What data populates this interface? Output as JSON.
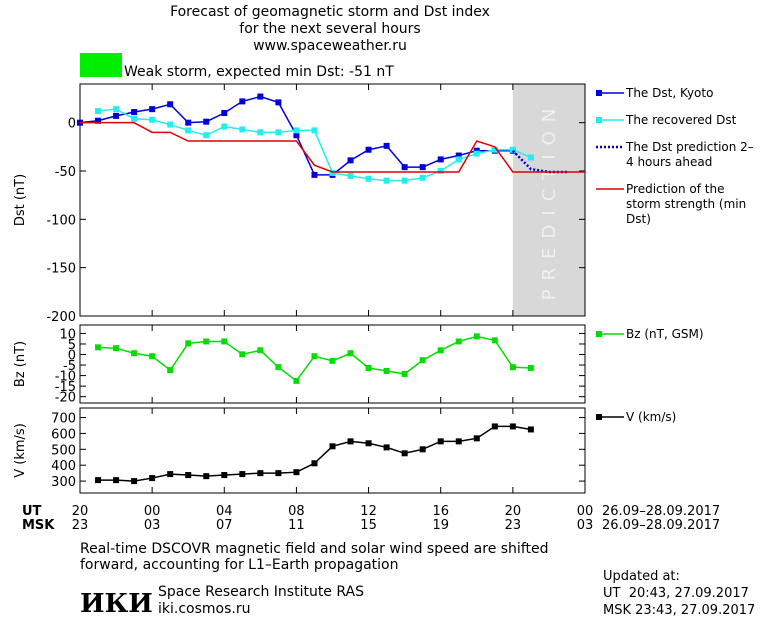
{
  "header": {
    "lines": [
      "Forecast of geomagnetic storm and Dst index",
      "for the next several hours",
      "www.spaceweather.ru"
    ],
    "storm_color": "#00ee00",
    "storm_label": "Weak storm, expected min Dst: -51 nT"
  },
  "x_axis": {
    "xlim": [
      0,
      28
    ],
    "ut_label": "UT",
    "msk_label": "MSK",
    "date_range": "26.09–28.09.2017",
    "xticks": [
      {
        "value": 0,
        "label": "20"
      },
      {
        "value": 4,
        "label": "00"
      },
      {
        "value": 8,
        "label": "04"
      },
      {
        "value": 12,
        "label": "08"
      },
      {
        "value": 16,
        "label": "12"
      },
      {
        "value": 20,
        "label": "16"
      },
      {
        "value": 24,
        "label": "20"
      },
      {
        "value": 28,
        "label": "00"
      }
    ],
    "msk_ticks": [
      "23",
      "03",
      "07",
      "11",
      "15",
      "19",
      "23",
      "03"
    ]
  },
  "chart_data": [
    {
      "type": "line",
      "ylabel": "Dst (nT)",
      "ylim": [
        -200,
        40
      ],
      "yticks": [
        0,
        -50,
        -100,
        -150,
        -200
      ],
      "prediction_start": 24,
      "prediction_label": "PREDICTION",
      "series": [
        {
          "name": "The Dst, Kyoto",
          "color": "#0000dd",
          "markers": true,
          "x": [
            0,
            1,
            2,
            3,
            4,
            5,
            6,
            7,
            8,
            9,
            10,
            11,
            12,
            13,
            14,
            15,
            16,
            17,
            18,
            19,
            20,
            21,
            22,
            23,
            24
          ],
          "values": [
            0,
            2,
            7,
            11,
            14,
            19,
            0,
            1,
            10,
            22,
            27,
            21,
            -13,
            -54,
            -54,
            -39,
            -28,
            -24,
            -46,
            -46,
            -38,
            -34,
            -29,
            -29,
            -29
          ]
        },
        {
          "name": "The recovered Dst",
          "color": "#22eeee",
          "markers": true,
          "x": [
            1,
            2,
            3,
            4,
            5,
            6,
            7,
            8,
            9,
            10,
            11,
            12,
            13,
            14,
            15,
            16,
            17,
            18,
            19,
            20,
            21,
            22,
            23,
            24,
            25
          ],
          "values": [
            12,
            14,
            4,
            3,
            -2,
            -8,
            -13,
            -4,
            -7,
            -10,
            -10,
            -8,
            -8,
            -52,
            -55,
            -58,
            -60,
            -60,
            -57,
            -50,
            -38,
            -32,
            -28,
            -28,
            -36
          ]
        },
        {
          "name": "The Dst prediction 2–4 hours ahead",
          "color": "#0000dd",
          "dash": true,
          "x": [
            24,
            25,
            26,
            27
          ],
          "values": [
            -29,
            -48,
            -51,
            -51
          ]
        },
        {
          "name": "Prediction of the storm strength (min Dst)",
          "color": "#dd0000",
          "x": [
            0,
            3,
            4,
            5,
            6,
            12,
            13,
            14,
            21,
            22,
            23,
            24,
            28
          ],
          "values": [
            0,
            0,
            -10,
            -10,
            -19,
            -19,
            -44,
            -51,
            -51,
            -19,
            -25,
            -51,
            -51
          ]
        }
      ]
    },
    {
      "type": "line",
      "ylabel": "Bz (nT)",
      "ylim": [
        -23,
        14
      ],
      "yticks": [
        10,
        5,
        0,
        -5,
        -10,
        -15,
        -20
      ],
      "series": [
        {
          "name": "Bz (nT, GSM)",
          "color": "#00dd00",
          "markers": true,
          "x": [
            1,
            2,
            3,
            4,
            5,
            6,
            7,
            8,
            9,
            10,
            11,
            12,
            13,
            14,
            15,
            16,
            17,
            18,
            19,
            20,
            21,
            22,
            23,
            24,
            25
          ],
          "values": [
            3.4,
            3,
            0.6,
            -0.8,
            -7.4,
            5.3,
            6.2,
            6.2,
            0.1,
            2,
            -6,
            -12.5,
            -0.8,
            -3,
            0.6,
            -6.4,
            -7.8,
            -9.2,
            -2.7,
            2,
            6.2,
            8.6,
            6.7,
            -6,
            -6.4
          ]
        }
      ]
    },
    {
      "type": "line",
      "ylabel": "V (km/s)",
      "ylim": [
        225,
        760
      ],
      "yticks": [
        700,
        600,
        500,
        400,
        300
      ],
      "series": [
        {
          "name": "V (km/s)",
          "color": "#000000",
          "markers": true,
          "x": [
            1,
            2,
            3,
            4,
            5,
            6,
            7,
            8,
            9,
            10,
            11,
            12,
            13,
            14,
            15,
            16,
            17,
            18,
            19,
            20,
            21,
            22,
            23,
            24,
            25
          ],
          "values": [
            306,
            306,
            300,
            319,
            344,
            338,
            331,
            338,
            344,
            350,
            350,
            356,
            412,
            519,
            550,
            538,
            512,
            475,
            500,
            550,
            550,
            569,
            644,
            644,
            625
          ]
        }
      ]
    }
  ],
  "footer": {
    "note": [
      "Real-time DSCOVR magnetic field and solar wind speed are shifted",
      "forward, accounting for L1–Earth propagation"
    ],
    "logo": "ИКИ",
    "institute": [
      "Space Research Institute RAS",
      "iki.cosmos.ru"
    ],
    "updated": [
      "Updated at:",
      "UT  20:43, 27.09.2017",
      "MSK 23:43, 27.09.2017"
    ]
  }
}
